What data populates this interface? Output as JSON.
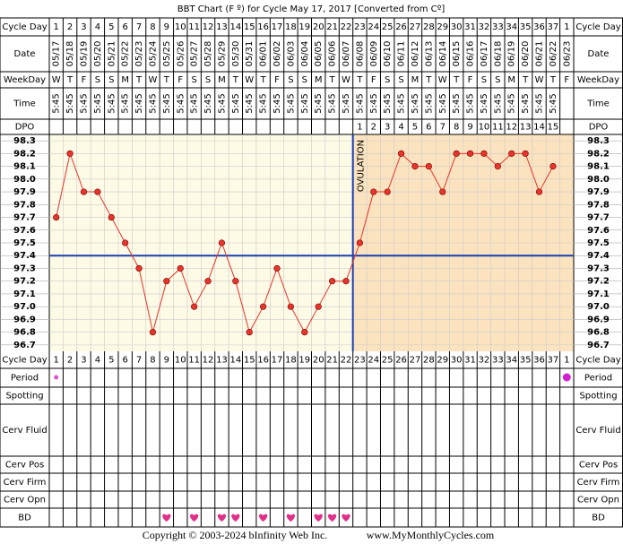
{
  "chart_data": {
    "type": "bbt",
    "title": "BBT Chart (F º) for Cycle May 17, 2017  [Converted from Cº]",
    "row_labels": {
      "cycle_day": "Cycle Day",
      "date": "Date",
      "weekday": "WeekDay",
      "time": "Time",
      "dpo": "DPO",
      "period": "Period",
      "spotting": "Spotting",
      "cerv_fluid": "Cerv Fluid",
      "cerv_pos": "Cerv Pos",
      "cerv_firm": "Cerv Firm",
      "cerv_opn": "Cerv Opn",
      "bd": "BD"
    },
    "cycle_days": [
      1,
      2,
      3,
      4,
      5,
      6,
      7,
      8,
      9,
      10,
      11,
      12,
      13,
      14,
      15,
      16,
      17,
      18,
      19,
      20,
      21,
      22,
      23,
      24,
      25,
      26,
      27,
      28,
      29,
      30,
      31,
      32,
      33,
      34,
      35,
      36,
      37,
      1
    ],
    "dates": [
      "05/17",
      "05/18",
      "05/19",
      "05/20",
      "05/21",
      "05/22",
      "05/23",
      "05/24",
      "05/25",
      "05/26",
      "05/27",
      "05/28",
      "05/29",
      "05/30",
      "05/31",
      "06/01",
      "06/02",
      "06/03",
      "06/04",
      "06/05",
      "06/06",
      "06/07",
      "06/08",
      "06/09",
      "06/10",
      "06/11",
      "06/12",
      "06/13",
      "06/14",
      "06/15",
      "06/16",
      "06/17",
      "06/18",
      "06/19",
      "06/20",
      "06/21",
      "06/22",
      "06/23"
    ],
    "weekdays": [
      "W",
      "T",
      "F",
      "S",
      "S",
      "M",
      "T",
      "W",
      "T",
      "F",
      "S",
      "S",
      "M",
      "T",
      "W",
      "T",
      "F",
      "S",
      "S",
      "M",
      "T",
      "W",
      "T",
      "F",
      "S",
      "S",
      "M",
      "T",
      "W",
      "T",
      "F",
      "S",
      "S",
      "M",
      "T",
      "W",
      "T",
      "F"
    ],
    "times": [
      "5:45",
      "5:45",
      "5:45",
      "5:45",
      "5:45",
      "5:45",
      "5:45",
      "5:45",
      "5:45",
      "5:45",
      "5:45",
      "5:45",
      "5:45",
      "5:45",
      "5:45",
      "5:45",
      "5:45",
      "5:45",
      "5:45",
      "5:45",
      "5:45",
      "5:45",
      "5:45",
      "5:45",
      "5:45",
      "5:45",
      "5:45",
      "5:45",
      "5:45",
      "5:45",
      "5:45",
      "5:45",
      "5:45",
      "5:45",
      "5:45",
      "5:45",
      "5:45",
      null
    ],
    "dpo": [
      null,
      null,
      null,
      null,
      null,
      null,
      null,
      null,
      null,
      null,
      null,
      null,
      null,
      null,
      null,
      null,
      null,
      null,
      null,
      null,
      null,
      null,
      1,
      2,
      3,
      4,
      5,
      6,
      7,
      8,
      9,
      10,
      11,
      12,
      13,
      14,
      15,
      null
    ],
    "series": [
      {
        "color": "#e8352b",
        "values": [
          97.7,
          98.2,
          97.9,
          97.9,
          97.7,
          97.5,
          97.3,
          96.8,
          97.2,
          97.3,
          97.0,
          97.2,
          97.5,
          97.2,
          96.8,
          97.0,
          97.3,
          97.0,
          96.8,
          97.0,
          97.2,
          97.2,
          97.5,
          97.9,
          97.9,
          98.2,
          98.1,
          98.1,
          97.9,
          98.2,
          98.2,
          98.2,
          98.1,
          98.2,
          98.2,
          97.9,
          98.1,
          null
        ]
      }
    ],
    "ylim": [
      96.65,
      98.35
    ],
    "yticks": [
      96.7,
      96.8,
      96.9,
      {
        "value": 97,
        "label": "97.0"
      },
      97.1,
      97.2,
      97.3,
      97.4,
      97.5,
      97.6,
      97.7,
      97.8,
      97.9,
      {
        "value": 98,
        "label": "98.0"
      },
      98.1,
      98.2,
      98.3
    ],
    "grid": true,
    "coverline": 97.4,
    "coverline_color": "#1a3fb0",
    "ovulation_day": 22,
    "ovulation_label": "OVULATION",
    "period": [
      true,
      false,
      false,
      false,
      false,
      false,
      false,
      false,
      false,
      false,
      false,
      false,
      false,
      false,
      false,
      false,
      false,
      false,
      false,
      false,
      false,
      false,
      false,
      false,
      false,
      false,
      false,
      false,
      false,
      false,
      false,
      false,
      false,
      false,
      false,
      false,
      false,
      true
    ],
    "bd": [
      false,
      false,
      false,
      false,
      false,
      false,
      false,
      false,
      true,
      false,
      true,
      false,
      true,
      true,
      false,
      true,
      false,
      true,
      false,
      true,
      true,
      true,
      false,
      false,
      false,
      false,
      false,
      false,
      false,
      false,
      false,
      false,
      false,
      false,
      false,
      false,
      false,
      false
    ]
  },
  "footer": {
    "copyright": "Copyright © 2003-2024 bInfinity Web Inc.",
    "website": "www.MyMonthlyCycles.com"
  }
}
